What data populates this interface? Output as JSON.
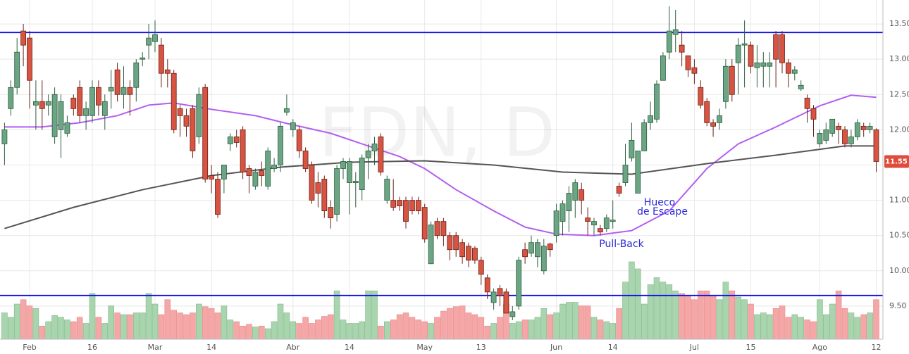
{
  "chart_data": {
    "type": "candlestick",
    "watermark": "FDN, D",
    "annotations": [
      "Hueco",
      "de Escape",
      "Pull-Back"
    ],
    "categories": [
      null,
      null,
      null,
      null,
      "Feb",
      null,
      null,
      null,
      null,
      null,
      null,
      null,
      null,
      null,
      "16",
      null,
      null,
      null,
      null,
      null,
      null,
      null,
      null,
      null,
      "Mar",
      null,
      null,
      null,
      null,
      null,
      null,
      null,
      null,
      "14",
      null,
      null,
      null,
      null,
      null,
      null,
      null,
      null,
      null,
      null,
      null,
      null,
      "Abr",
      null,
      null,
      null,
      null,
      null,
      null,
      null,
      null,
      "14",
      null,
      null,
      null,
      null,
      null,
      null,
      null,
      null,
      null,
      null,
      null,
      "May",
      null,
      null,
      null,
      null,
      null,
      null,
      null,
      null,
      "13",
      null,
      null,
      null,
      null,
      null,
      null,
      null,
      null,
      null,
      null,
      null,
      "Jun",
      null,
      null,
      null,
      null,
      null,
      null,
      null,
      null,
      "14",
      null,
      null,
      null,
      null,
      null,
      null,
      null,
      null,
      null,
      null,
      null,
      null,
      "Jul",
      null,
      null,
      null,
      null,
      null,
      null,
      null,
      null,
      "15",
      null,
      null,
      null,
      null,
      null,
      null,
      null,
      null,
      null,
      null,
      "Ago",
      null,
      null,
      null,
      null,
      null,
      null,
      null,
      null,
      "12"
    ],
    "open": [
      11.8,
      12.3,
      12.6,
      13.4,
      13.3,
      12.35,
      12.4,
      12.35,
      11.9,
      12.0,
      11.95,
      12.45,
      12.6,
      12.2,
      12.2,
      12.6,
      12.2,
      12.55,
      12.85,
      12.5,
      12.6,
      12.6,
      13.0,
      13.2,
      13.25,
      13.2,
      12.85,
      12.8,
      12.3,
      12.2,
      12.3,
      11.9,
      12.6,
      11.35,
      11.3,
      11.3,
      11.8,
      11.9,
      12.0,
      11.45,
      11.2,
      11.42,
      11.2,
      11.45,
      11.5,
      12.25,
      12.0,
      12.0,
      11.7,
      11.5,
      11.25,
      11.3,
      10.9,
      10.8,
      11.45,
      11.25,
      11.25,
      11.15,
      11.6,
      11.7,
      11.9,
      11.0,
      11.0,
      11.0,
      11.0,
      11.0,
      11.0,
      10.9,
      10.1,
      10.7,
      10.7,
      10.5,
      10.5,
      10.4,
      10.35,
      10.32,
      10.15,
      9.9,
      9.55,
      9.75,
      9.7,
      9.35,
      9.5,
      10.3,
      10.25,
      10.2,
      10.0,
      10.38,
      10.5,
      10.7,
      10.85,
      11.0,
      11.15,
      10.75,
      10.65,
      10.6,
      10.6,
      10.7,
      11.2,
      11.25,
      11.6,
      11.1,
      11.7,
      12.1,
      12.15,
      12.7,
      13.1,
      13.35,
      13.2,
      13.05,
      12.88,
      12.6,
      12.4,
      12.1,
      12.1,
      12.4,
      12.9,
      12.95,
      13.2,
      13.2,
      12.88,
      12.9,
      12.9,
      13.35,
      13.35,
      12.95,
      12.8,
      12.58,
      12.45,
      12.3,
      11.8,
      11.85,
      11.95,
      12.05,
      12.0,
      11.8,
      11.9,
      12.05,
      12.0,
      12.0
    ],
    "high": [
      12.1,
      12.7,
      13.3,
      13.5,
      13.4,
      12.7,
      12.7,
      12.5,
      12.6,
      12.5,
      12.2,
      12.5,
      12.7,
      12.4,
      12.7,
      12.7,
      12.5,
      12.85,
      12.95,
      12.9,
      12.7,
      13.0,
      13.1,
      13.5,
      13.55,
      13.3,
      13.0,
      12.85,
      12.35,
      12.3,
      12.35,
      12.6,
      12.65,
      11.5,
      11.4,
      11.5,
      11.95,
      12.0,
      12.05,
      11.5,
      11.45,
      11.55,
      11.75,
      11.6,
      12.1,
      12.5,
      12.15,
      12.05,
      11.75,
      11.55,
      11.4,
      11.35,
      11.0,
      11.5,
      11.6,
      11.6,
      11.4,
      11.65,
      11.8,
      11.9,
      11.95,
      11.35,
      11.3,
      11.05,
      11.05,
      11.05,
      11.05,
      10.95,
      10.7,
      10.75,
      10.75,
      10.55,
      10.55,
      10.45,
      10.4,
      10.35,
      10.2,
      9.95,
      9.75,
      9.8,
      9.75,
      9.5,
      10.2,
      10.4,
      10.5,
      10.45,
      10.45,
      10.4,
      10.95,
      11.0,
      11.2,
      11.3,
      11.25,
      10.9,
      10.75,
      10.65,
      10.8,
      11.0,
      11.25,
      11.8,
      12.1,
      11.7,
      12.15,
      12.4,
      12.7,
      13.1,
      13.75,
      13.7,
      13.4,
      13.05,
      13.0,
      12.7,
      12.45,
      12.15,
      12.3,
      13.0,
      13.0,
      13.3,
      13.55,
      13.25,
      13.2,
      13.1,
      13.1,
      13.4,
      13.4,
      13.0,
      12.9,
      12.7,
      12.5,
      12.35,
      12.0,
      12.1,
      12.15,
      12.1,
      12.05,
      12.0,
      12.15,
      12.1,
      12.1,
      12.02
    ],
    "low": [
      11.5,
      12.2,
      12.5,
      12.9,
      12.3,
      12.0,
      12.0,
      12.2,
      11.8,
      11.6,
      11.9,
      12.2,
      12.1,
      12.0,
      12.1,
      12.2,
      12.0,
      12.3,
      12.4,
      12.3,
      12.2,
      12.4,
      12.9,
      13.0,
      13.1,
      12.6,
      12.6,
      11.95,
      11.9,
      11.9,
      11.6,
      11.8,
      11.25,
      11.1,
      10.75,
      11.1,
      11.7,
      11.75,
      11.3,
      11.1,
      11.15,
      11.2,
      11.15,
      11.4,
      11.4,
      12.2,
      11.9,
      11.6,
      11.4,
      10.95,
      10.9,
      10.75,
      10.6,
      10.7,
      11.3,
      10.8,
      10.9,
      11.0,
      11.3,
      11.5,
      11.35,
      10.95,
      10.85,
      10.85,
      10.6,
      10.8,
      10.8,
      10.4,
      10.1,
      10.45,
      10.35,
      10.15,
      10.2,
      10.1,
      10.05,
      10.1,
      9.8,
      9.6,
      9.45,
      9.5,
      9.4,
      9.3,
      9.45,
      10.1,
      10.2,
      10.05,
      9.95,
      10.2,
      10.4,
      10.5,
      10.55,
      10.75,
      10.8,
      10.5,
      10.5,
      10.5,
      10.55,
      10.6,
      11.05,
      11.2,
      11.55,
      11.1,
      11.7,
      12.0,
      12.1,
      12.7,
      13.0,
      13.1,
      12.9,
      12.75,
      12.65,
      12.3,
      12.05,
      11.9,
      12.0,
      12.3,
      12.4,
      12.5,
      12.6,
      12.8,
      12.6,
      12.6,
      12.6,
      12.6,
      12.8,
      12.6,
      12.7,
      12.55,
      12.1,
      11.9,
      11.75,
      11.8,
      11.9,
      11.8,
      11.75,
      11.75,
      11.85,
      11.9,
      11.95,
      11.4
    ],
    "close": [
      12.0,
      12.6,
      13.1,
      13.2,
      12.7,
      12.4,
      12.3,
      12.4,
      12.5,
      12.4,
      12.1,
      12.3,
      12.2,
      12.3,
      12.6,
      12.35,
      12.4,
      12.6,
      12.5,
      12.6,
      12.5,
      12.95,
      13.02,
      13.3,
      13.35,
      12.8,
      12.8,
      12.0,
      12.2,
      12.05,
      11.7,
      12.5,
      11.3,
      11.3,
      10.8,
      11.5,
      11.9,
      11.82,
      11.4,
      11.35,
      11.4,
      11.35,
      11.7,
      11.5,
      12.05,
      12.3,
      12.1,
      11.7,
      11.45,
      11.0,
      11.1,
      10.85,
      10.75,
      11.45,
      11.55,
      11.55,
      11.27,
      11.6,
      11.7,
      11.8,
      11.4,
      11.3,
      10.9,
      10.92,
      10.7,
      10.85,
      10.85,
      10.45,
      10.65,
      10.5,
      10.5,
      10.3,
      10.3,
      10.2,
      10.15,
      10.15,
      9.95,
      9.7,
      9.7,
      9.65,
      9.4,
      9.42,
      10.15,
      10.2,
      10.4,
      10.4,
      10.35,
      10.3,
      10.85,
      10.95,
      11.1,
      11.25,
      11.0,
      10.7,
      10.7,
      10.55,
      10.75,
      10.72,
      11.1,
      11.5,
      11.85,
      11.7,
      12.1,
      12.2,
      12.65,
      13.05,
      13.4,
      13.42,
      13.1,
      12.85,
      12.8,
      12.35,
      12.1,
      12.05,
      12.2,
      12.9,
      12.5,
      13.2,
      13.22,
      12.9,
      12.95,
      12.95,
      12.95,
      13.0,
      12.95,
      12.8,
      12.85,
      12.63,
      12.3,
      12.15,
      11.95,
      12.0,
      12.15,
      12.0,
      11.8,
      11.9,
      12.1,
      12.0,
      12.05,
      11.55
    ],
    "volume": [
      30,
      25,
      40,
      45,
      38,
      35,
      15,
      20,
      27,
      25,
      22,
      20,
      25,
      18,
      52,
      25,
      18,
      38,
      30,
      28,
      28,
      30,
      30,
      52,
      40,
      28,
      45,
      33,
      30,
      28,
      30,
      40,
      37,
      35,
      30,
      38,
      22,
      20,
      15,
      17,
      14,
      15,
      12,
      20,
      40,
      30,
      20,
      18,
      25,
      18,
      22,
      26,
      28,
      55,
      22,
      18,
      18,
      20,
      55,
      55,
      15,
      20,
      22,
      28,
      30,
      25,
      22,
      20,
      18,
      25,
      32,
      35,
      37,
      38,
      30,
      28,
      25,
      15,
      18,
      25,
      40,
      18,
      20,
      22,
      22,
      25,
      35,
      28,
      30,
      40,
      42,
      42,
      38,
      38,
      25,
      22,
      20,
      18,
      35,
      65,
      88,
      80,
      40,
      62,
      70,
      65,
      62,
      55,
      52,
      50,
      45,
      55,
      55,
      50,
      45,
      65,
      55,
      48,
      45,
      40,
      28,
      30,
      28,
      35,
      38,
      25,
      28,
      25,
      22,
      20,
      45,
      28,
      40,
      55,
      35,
      30,
      25,
      28,
      30,
      45
    ],
    "up_color": "#6ba583",
    "down_color": "#d75442",
    "volume_up_color": "#a9d5ae",
    "volume_down_color": "#f5a6a6",
    "volume_lim": [
      0,
      100
    ],
    "lines": [
      {
        "color": "#b25ef0",
        "x": [
          0,
          6,
          12,
          18,
          23,
          27,
          33,
          40,
          45,
          52,
          59,
          63,
          67,
          72,
          78,
          83,
          88,
          94,
          100,
          106,
          112,
          117,
          123,
          130,
          135,
          139
        ],
        "values": [
          12.04,
          12.04,
          12.1,
          12.2,
          12.35,
          12.38,
          12.29,
          12.2,
          12.09,
          11.95,
          11.74,
          11.62,
          11.45,
          11.15,
          10.85,
          10.62,
          10.52,
          10.5,
          10.57,
          10.85,
          11.45,
          11.8,
          12.04,
          12.34,
          12.49,
          12.46
        ]
      },
      {
        "color": "#555555",
        "x": [
          0,
          11,
          22,
          33,
          44,
          55,
          67,
          78,
          89,
          100,
          112,
          123,
          134,
          139
        ],
        "values": [
          10.6,
          10.9,
          11.15,
          11.35,
          11.47,
          11.54,
          11.56,
          11.5,
          11.4,
          11.37,
          11.52,
          11.64,
          11.77,
          11.77
        ]
      }
    ],
    "hlines": [
      {
        "value": 13.38,
        "color": "#1414e6"
      },
      {
        "value": 9.65,
        "color": "#1414e6"
      }
    ],
    "ylim": [
      9.03,
      13.84
    ],
    "yticks": [
      {
        "value": 9.5,
        "label": "9.50"
      },
      {
        "value": 10,
        "label": "10.00"
      },
      {
        "value": 10.5,
        "label": "10.50"
      },
      {
        "value": 11,
        "label": "11.00"
      },
      {
        "value": 11.5,
        "label": "11.50"
      },
      {
        "value": 12,
        "label": "12.00"
      },
      {
        "value": 12.5,
        "label": "12.50"
      },
      {
        "value": 13,
        "label": "13.00"
      },
      {
        "value": 13.5,
        "label": "13.50"
      }
    ],
    "grid": true,
    "last_price_color": "#e04b3c"
  }
}
